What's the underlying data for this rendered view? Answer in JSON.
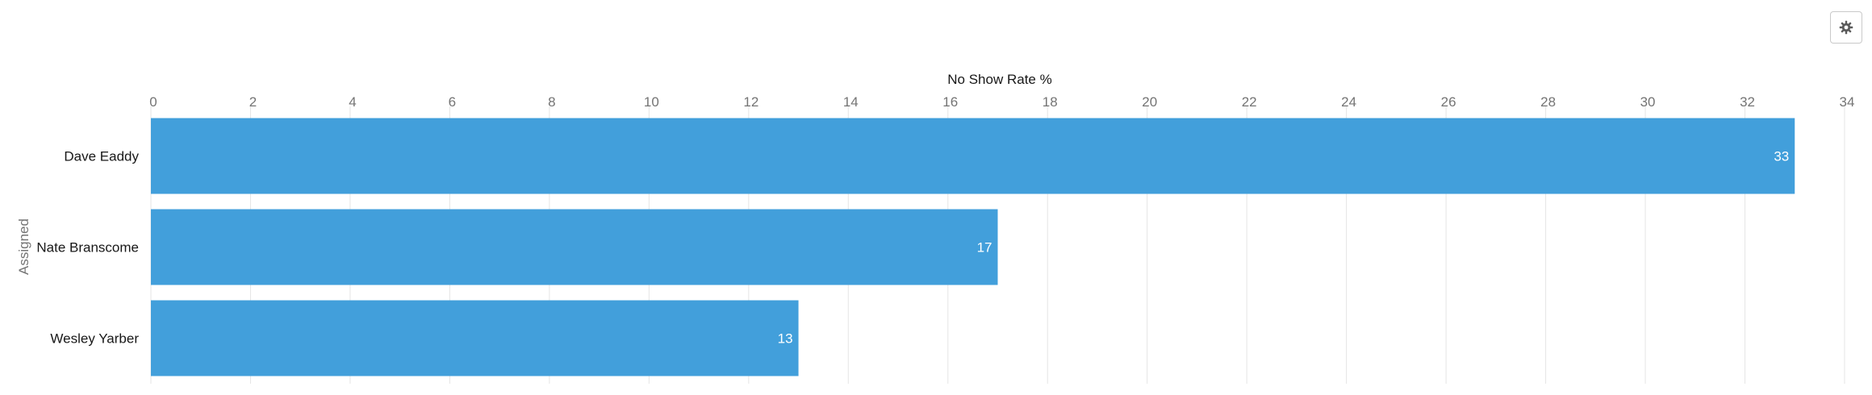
{
  "toolbar": {
    "settings_icon": "gear-icon"
  },
  "chart_data": {
    "type": "bar",
    "orientation": "horizontal",
    "title": "",
    "xlabel": "No Show Rate %",
    "ylabel": "Assigned",
    "categories": [
      "Dave Eaddy",
      "Nate Branscome",
      "Wesley Yarber"
    ],
    "values": [
      33,
      17,
      13
    ],
    "xlim": [
      0,
      34
    ],
    "x_ticks": [
      "0",
      "2",
      "4",
      "6",
      "8",
      "10",
      "12",
      "14",
      "16",
      "18",
      "20",
      "22",
      "24",
      "26",
      "28",
      "30",
      "32",
      "34"
    ],
    "data_labels": [
      "33",
      "17",
      "13"
    ],
    "bar_color": "#429fdb",
    "grid": true,
    "legend": "none"
  }
}
